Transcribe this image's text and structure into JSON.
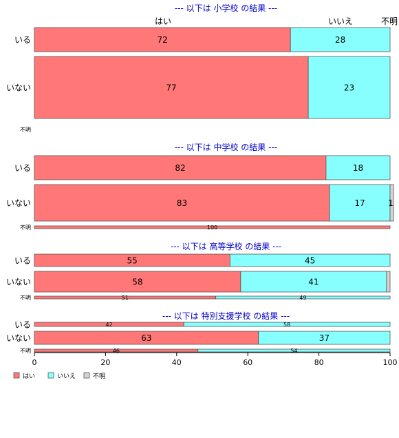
{
  "chart_data": {
    "type": "bar",
    "orientation": "horizontal-stacked-100",
    "xlim": [
      0,
      100
    ],
    "x_ticks": [
      0,
      20,
      40,
      60,
      80,
      100
    ],
    "series_names": [
      "はい",
      "いいえ",
      "不明"
    ],
    "colors": {
      "yes": "#ff7777",
      "no": "#88ffff",
      "unknown": "#d3d3d3",
      "title": "#0000cc"
    },
    "header_labels": [
      "はい",
      "いいえ",
      "不明"
    ],
    "legend": {
      "position": "bottom-left",
      "items": [
        "はい",
        "いいえ",
        "不明"
      ]
    },
    "panels": [
      {
        "title": "--- 以下は 小学校 の結果 ---",
        "rows": [
          {
            "label": "いる",
            "values": [
              72,
              28,
              0
            ],
            "labels": [
              "72",
              "28",
              ""
            ]
          },
          {
            "label": "いない",
            "values": [
              77,
              23,
              0
            ],
            "labels": [
              "77",
              "23",
              ""
            ]
          },
          {
            "label": "不明",
            "values": [
              0,
              0,
              0
            ],
            "labels": [
              "",
              "",
              ""
            ]
          }
        ]
      },
      {
        "title": "--- 以下は 中学校 の結果 ---",
        "rows": [
          {
            "label": "いる",
            "values": [
              82,
              18,
              0
            ],
            "labels": [
              "82",
              "18",
              ""
            ]
          },
          {
            "label": "いない",
            "values": [
              83,
              17,
              1
            ],
            "labels": [
              "83",
              "17",
              "1"
            ]
          },
          {
            "label": "不明",
            "values": [
              100,
              0,
              0
            ],
            "labels": [
              "100",
              "",
              ""
            ]
          }
        ]
      },
      {
        "title": "--- 以下は 高等学校 の結果 ---",
        "rows": [
          {
            "label": "いる",
            "values": [
              55,
              45,
              0
            ],
            "labels": [
              "55",
              "45",
              ""
            ]
          },
          {
            "label": "いない",
            "values": [
              58,
              41,
              1
            ],
            "labels": [
              "58",
              "41",
              ""
            ]
          },
          {
            "label": "不明",
            "values": [
              51,
              49,
              0
            ],
            "labels": [
              "51",
              "49",
              ""
            ]
          }
        ]
      },
      {
        "title": "--- 以下は 特別支援学校 の結果 ---",
        "rows": [
          {
            "label": "いる",
            "values": [
              42,
              58,
              0
            ],
            "labels": [
              "42",
              "58",
              ""
            ]
          },
          {
            "label": "いない",
            "values": [
              63,
              37,
              0
            ],
            "labels": [
              "63",
              "37",
              ""
            ]
          },
          {
            "label": "不明",
            "values": [
              46,
              54,
              0
            ],
            "labels": [
              "46",
              "54",
              ""
            ]
          }
        ]
      }
    ]
  }
}
